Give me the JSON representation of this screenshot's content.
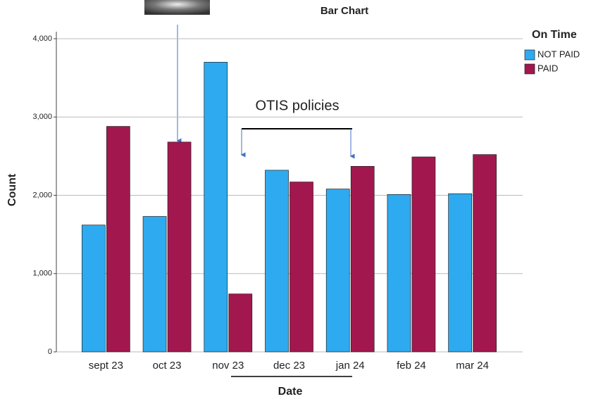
{
  "chart_data": {
    "type": "bar",
    "title": "Bar Chart",
    "x_label": "Date",
    "y_label": "Count",
    "categories": [
      "sept 23",
      "oct 23",
      "nov 23",
      "dec 23",
      "jan 24",
      "feb 24",
      "mar 24"
    ],
    "series": [
      {
        "name": "NOT PAID",
        "color": "#2eaaf0",
        "values": [
          1620,
          1730,
          3700,
          2320,
          2080,
          2010,
          2020
        ]
      },
      {
        "name": "PAID",
        "color": "#a3174f",
        "values": [
          2880,
          2680,
          740,
          2170,
          2370,
          2490,
          2520
        ]
      }
    ],
    "legend_title": "On Time",
    "legend": "top-right",
    "ylim": [
      0,
      4000
    ],
    "yticks": [
      0,
      {
        "value": 1000,
        "label": "1,000"
      },
      {
        "value": 2000,
        "label": "2,000"
      },
      {
        "value": 3000,
        "label": "3,000"
      },
      {
        "value": 4000,
        "label": "4,000"
      }
    ],
    "grid": true,
    "annotations": [
      "OTIS policies"
    ]
  }
}
